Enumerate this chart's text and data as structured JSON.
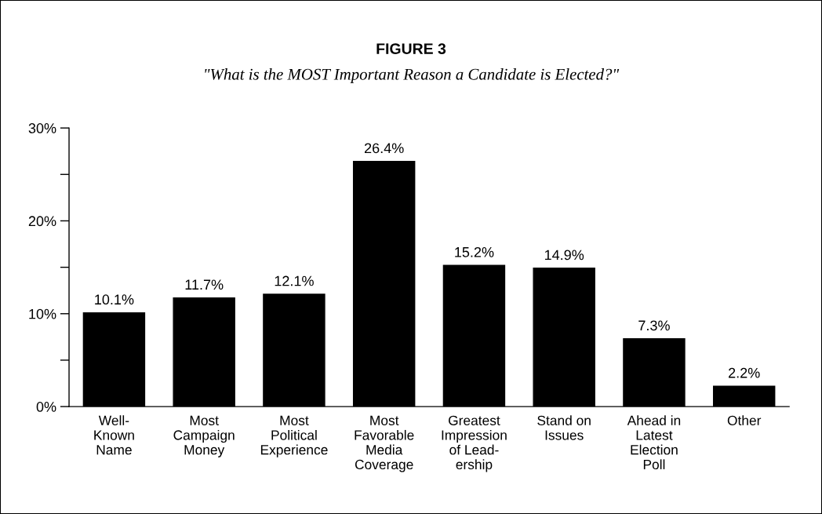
{
  "chart_data": {
    "type": "bar",
    "title": "FIGURE 3",
    "subtitle": "\"What is the MOST Important Reason a Candidate is Elected?\"",
    "categories": [
      "Well-\nKnown\nName",
      "Most\nCampaign\nMoney",
      "Most\nPolitical\nExperience",
      "Most\nFavorable\nMedia\nCoverage",
      "Greatest\nImpression\nof Lead-\nership",
      "Stand on\nIssues",
      "Ahead in\nLatest\nElection\nPoll",
      "Other"
    ],
    "values": [
      10.1,
      11.7,
      12.1,
      26.4,
      15.2,
      14.9,
      7.3,
      2.2
    ],
    "value_labels": [
      "10.1%",
      "11.7%",
      "12.1%",
      "26.4%",
      "15.2%",
      "14.9%",
      "7.3%",
      "2.2%"
    ],
    "color": "#000000",
    "ylim": [
      0,
      30
    ],
    "yticks": [
      {
        "value": 0,
        "label": "0%"
      },
      {
        "value": 5,
        "label": null
      },
      {
        "value": 10,
        "label": "10%"
      },
      {
        "value": 15,
        "label": null
      },
      {
        "value": 20,
        "label": "20%"
      },
      {
        "value": 25,
        "label": null
      },
      {
        "value": 30,
        "label": "30%"
      }
    ],
    "grid": false
  }
}
